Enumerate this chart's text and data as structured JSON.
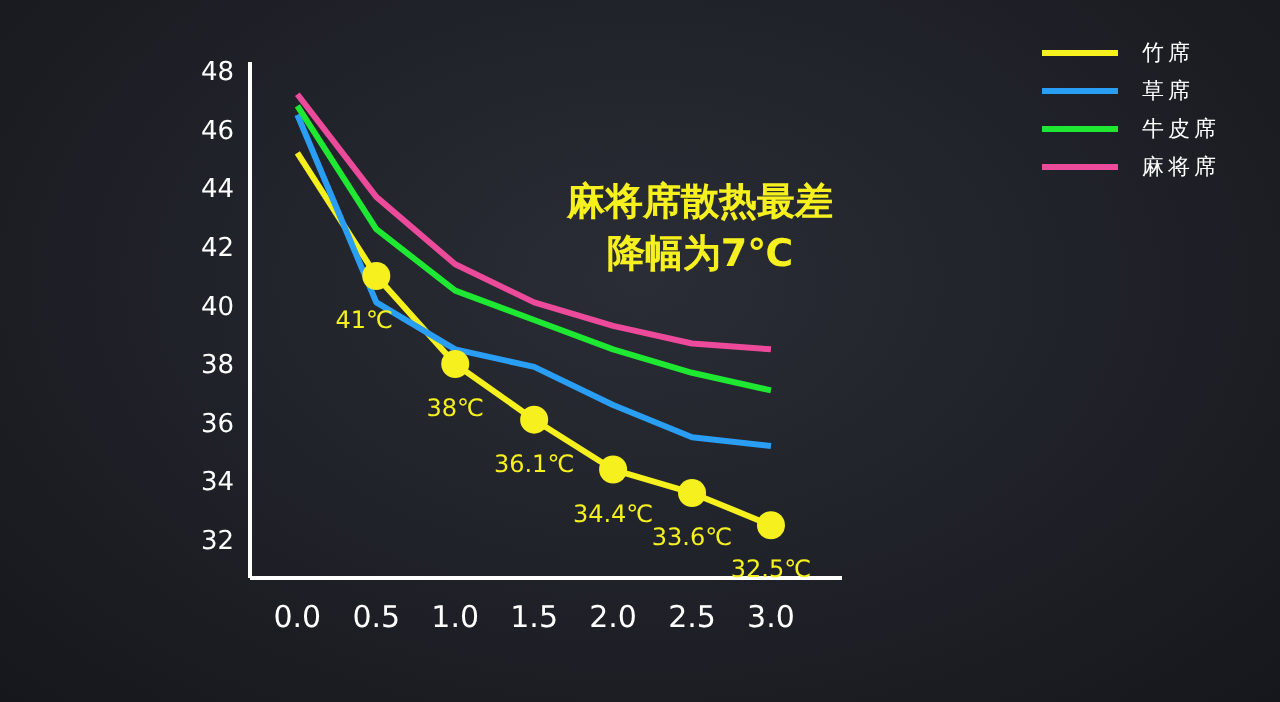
{
  "chart_data": {
    "type": "line",
    "x": [
      0,
      0.5,
      1,
      1.5,
      2,
      2.5,
      3
    ],
    "xlim": [
      -0.3,
      3.45
    ],
    "xticks": [
      {
        "value": 0,
        "label": "0.0"
      },
      {
        "value": 0.5,
        "label": "0.5"
      },
      {
        "value": 1,
        "label": "1.0"
      },
      {
        "value": 1.5,
        "label": "1.5"
      },
      {
        "value": 2,
        "label": "2.0"
      },
      {
        "value": 2.5,
        "label": "2.5"
      },
      {
        "value": 3,
        "label": "3.0"
      }
    ],
    "ylim": [
      30.7,
      48.3
    ],
    "yticks": [
      32,
      34,
      36,
      38,
      40,
      42,
      44,
      46,
      48
    ],
    "grid": false,
    "legend": "top right",
    "annotations": [
      "麻将席散热最差",
      "降幅为7℃"
    ],
    "series": [
      {
        "name": "竹席",
        "color": "#f5f01e",
        "marker": "circle",
        "values": [
          45.2,
          41,
          38,
          36.1,
          34.4,
          33.6,
          32.5
        ],
        "value_labels": [
          null,
          "41℃",
          "38℃",
          "36.1℃",
          "34.4℃",
          "33.6℃",
          "32.5℃"
        ]
      },
      {
        "name": "草席",
        "color": "#2a9df4",
        "marker": "none",
        "values": [
          46.5,
          40.1,
          38.5,
          37.9,
          36.6,
          35.5,
          35.2
        ]
      },
      {
        "name": "牛皮席",
        "color": "#1ee832",
        "marker": "none",
        "values": [
          46.8,
          42.6,
          40.5,
          39.5,
          38.5,
          37.7,
          37.1
        ]
      },
      {
        "name": "麻将席",
        "color": "#ec4a9a",
        "marker": "none",
        "values": [
          47.2,
          43.7,
          41.4,
          40.1,
          39.3,
          38.7,
          38.5
        ]
      }
    ]
  }
}
